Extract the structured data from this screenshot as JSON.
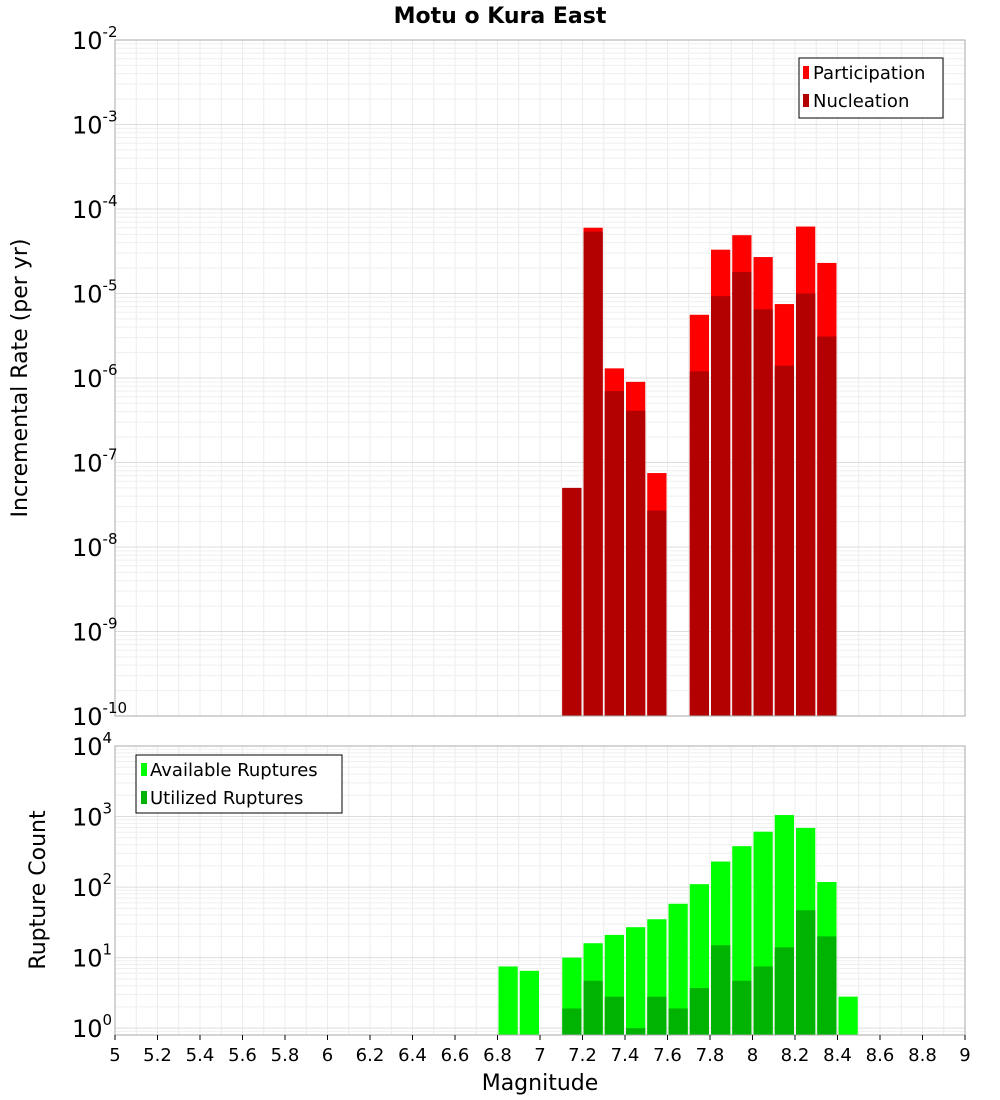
{
  "chart_data": [
    {
      "type": "bar",
      "title": "Motu o Kura East",
      "xlabel": "",
      "ylabel": "Incremental Rate (per yr)",
      "yscale": "log",
      "xlim": [
        5,
        9
      ],
      "ylim": [
        1e-10,
        0.01
      ],
      "grid": true,
      "legend_position": "top-right",
      "y_ticks": [
        {
          "base": "10",
          "exp": "-10",
          "value": 1e-10
        },
        {
          "base": "10",
          "exp": "-9",
          "value": 1e-09
        },
        {
          "base": "10",
          "exp": "-8",
          "value": 1e-08
        },
        {
          "base": "10",
          "exp": "-7",
          "value": 1e-07
        },
        {
          "base": "10",
          "exp": "-6",
          "value": 1e-06
        },
        {
          "base": "10",
          "exp": "-5",
          "value": 1e-05
        },
        {
          "base": "10",
          "exp": "-4",
          "value": 0.0001
        },
        {
          "base": "10",
          "exp": "-3",
          "value": 0.001
        },
        {
          "base": "10",
          "exp": "-2",
          "value": 0.01
        }
      ],
      "x": [
        7.15,
        7.25,
        7.35,
        7.45,
        7.55,
        7.75,
        7.85,
        7.95,
        8.05,
        8.15,
        8.25,
        8.35
      ],
      "series": [
        {
          "name": "Participation",
          "color": "#ff0000",
          "values": [
            5e-08,
            6e-05,
            1.3e-06,
            9e-07,
            7.5e-08,
            5.6e-06,
            3.3e-05,
            4.9e-05,
            2.7e-05,
            7.5e-06,
            6.2e-05,
            2.3e-05
          ]
        },
        {
          "name": "Nucleation",
          "color": "#b30000",
          "values": [
            5e-08,
            5.4e-05,
            7e-07,
            4.1e-07,
            2.7e-08,
            1.2e-06,
            9.3e-06,
            1.8e-05,
            6.5e-06,
            1.4e-06,
            1e-05,
            3.1e-06
          ]
        }
      ]
    },
    {
      "type": "bar",
      "title": "",
      "xlabel": "Magnitude",
      "ylabel": "Rupture Count",
      "yscale": "log",
      "xlim": [
        5,
        9
      ],
      "ylim": [
        0.8,
        10000
      ],
      "grid": true,
      "legend_position": "top-left",
      "x_ticks": [
        "5",
        "5.2",
        "5.4",
        "5.6",
        "5.8",
        "6",
        "6.2",
        "6.4",
        "6.6",
        "6.8",
        "7",
        "7.2",
        "7.4",
        "7.6",
        "7.8",
        "8",
        "8.2",
        "8.4",
        "8.6",
        "8.8",
        "9"
      ],
      "y_ticks": [
        {
          "base": "10",
          "exp": "0",
          "value": 1
        },
        {
          "base": "10",
          "exp": "1",
          "value": 10
        },
        {
          "base": "10",
          "exp": "2",
          "value": 100
        },
        {
          "base": "10",
          "exp": "3",
          "value": 1000
        },
        {
          "base": "10",
          "exp": "4",
          "value": 10000
        }
      ],
      "x": [
        6.85,
        6.95,
        7.15,
        7.25,
        7.35,
        7.45,
        7.55,
        7.65,
        7.75,
        7.85,
        7.95,
        8.05,
        8.15,
        8.25,
        8.35,
        8.45
      ],
      "series": [
        {
          "name": "Available Ruptures",
          "color": "#00ff00",
          "values": [
            7.5,
            6.5,
            10,
            16,
            21,
            27,
            35,
            58,
            110,
            230,
            380,
            610,
            1050,
            690,
            118,
            2.8
          ]
        },
        {
          "name": "Utilized Ruptures",
          "color": "#00b300",
          "values": [
            null,
            null,
            1.9,
            4.7,
            2.8,
            1.0,
            2.8,
            1.9,
            3.7,
            15,
            4.7,
            7.5,
            14,
            47,
            20,
            null
          ]
        }
      ]
    }
  ]
}
